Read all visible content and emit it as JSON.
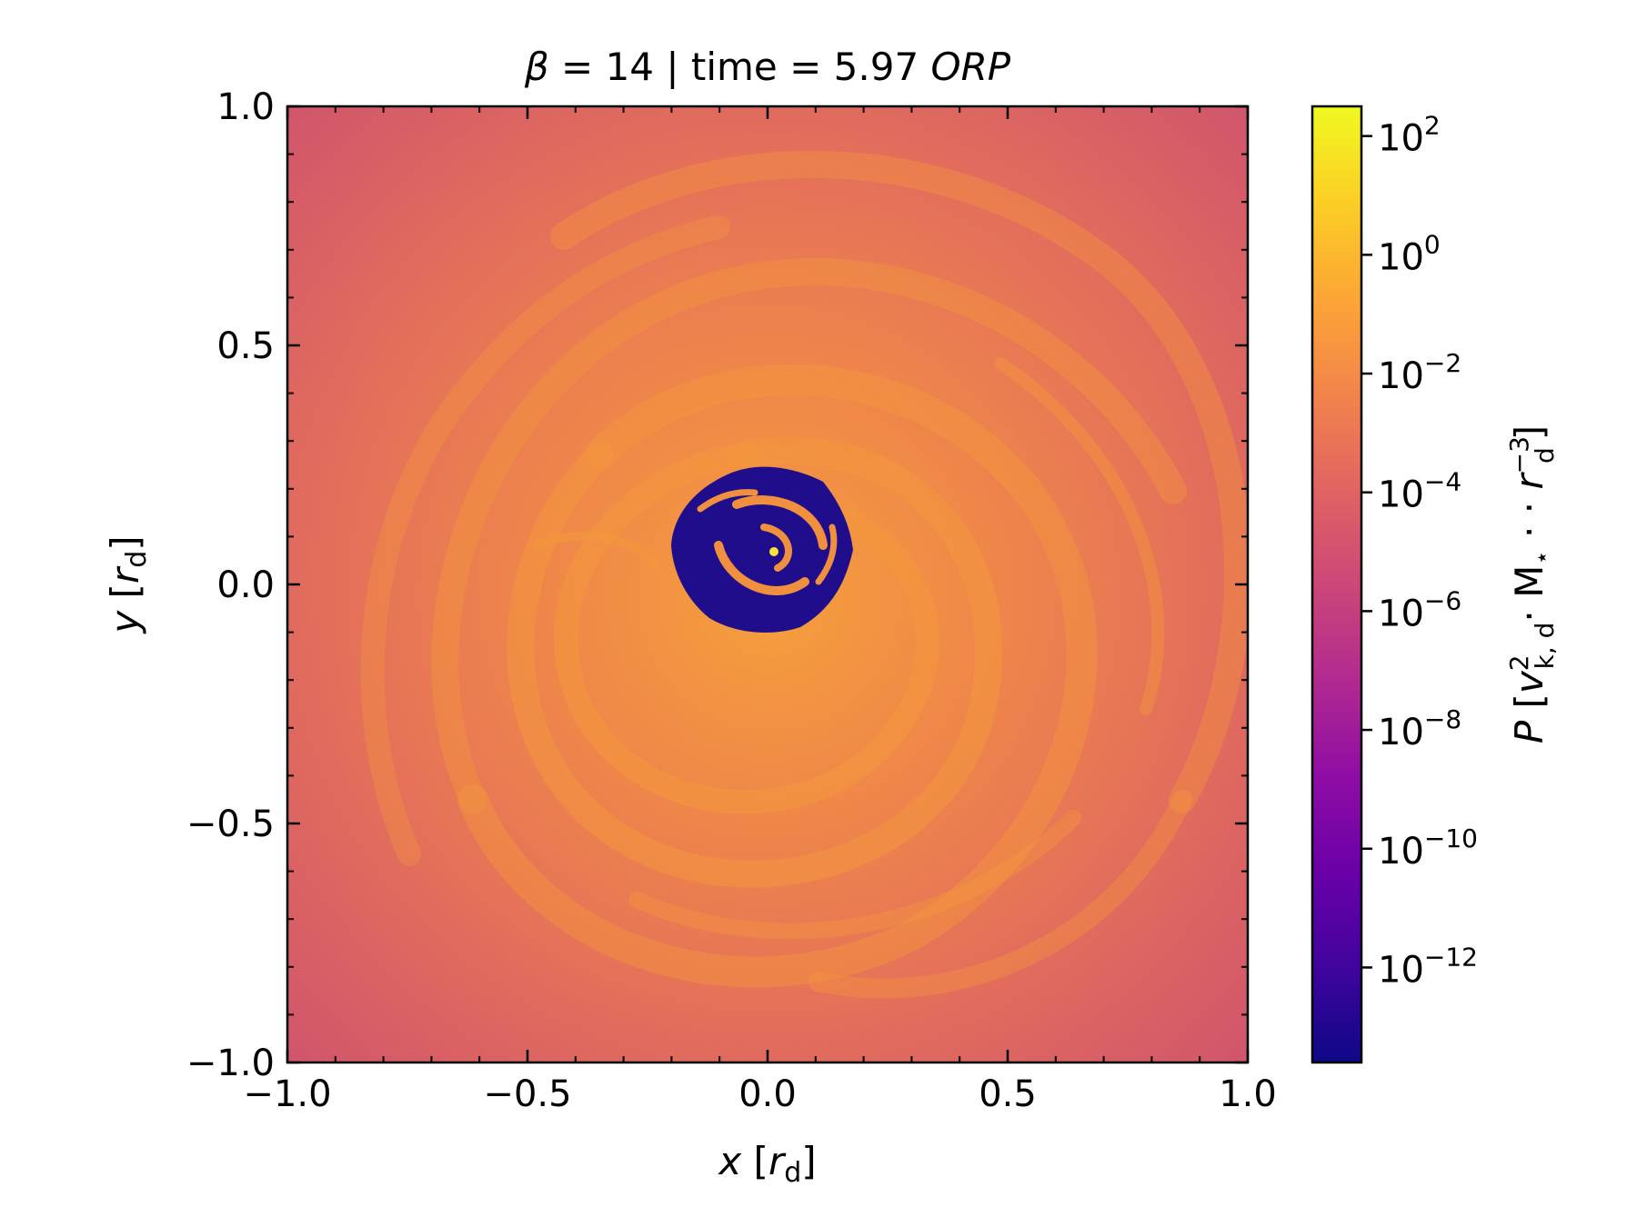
{
  "chart_data": {
    "type": "heatmap",
    "title_parts": [
      "β",
      " = 14 | time = 5.97 ",
      "ORP"
    ],
    "xlabel_parts": [
      "x",
      " [",
      "r",
      "d",
      "]"
    ],
    "ylabel_parts": [
      "y",
      " [",
      "r",
      "d",
      "]"
    ],
    "xlim": [
      -1.0,
      1.0
    ],
    "ylim": [
      -1.0,
      1.0
    ],
    "x_major_ticks": [
      -1.0,
      -0.5,
      0.0,
      0.5,
      1.0
    ],
    "y_major_ticks": [
      -1.0,
      -0.5,
      0.0,
      0.5,
      1.0
    ],
    "x_tick_labels": [
      "−1.0",
      "−0.5",
      "0.0",
      "0.5",
      "1.0"
    ],
    "y_tick_labels": [
      "−1.0",
      "−0.5",
      "0.0",
      "0.5",
      "1.0"
    ],
    "minor_tick_step": 0.1,
    "colormap": "plasma",
    "colorscale": "log",
    "colorbar": {
      "range_exponent": [
        -13.6,
        2.5
      ],
      "ticks": [
        {
          "base": "10",
          "exp": "2",
          "value_exponent": 2
        },
        {
          "base": "10",
          "exp": "0",
          "value_exponent": 0
        },
        {
          "base": "10",
          "exp": "−2",
          "value_exponent": -2
        },
        {
          "base": "10",
          "exp": "−4",
          "value_exponent": -4
        },
        {
          "base": "10",
          "exp": "−6",
          "value_exponent": -6
        },
        {
          "base": "10",
          "exp": "−8",
          "value_exponent": -8
        },
        {
          "base": "10",
          "exp": "−10",
          "value_exponent": -10
        },
        {
          "base": "10",
          "exp": "−12",
          "value_exponent": -12
        }
      ],
      "label_parts": {
        "P": "P",
        "open": " [",
        "v": "v",
        "v_sup": "2",
        "v_sub": "k, d",
        "dot1": "· M",
        "star_sub": "⋆",
        "dot2": " · · ",
        "r": "r",
        "r_sup": "−3",
        "r_sub": "d",
        "close": "]"
      }
    },
    "colors": {
      "background_disk": "#e9785a",
      "spiral_arms": "#f3953f",
      "outer_corners": "#d4566c",
      "inner_cavity": "#1f0d8c",
      "center_hot": "#fde33a"
    }
  }
}
